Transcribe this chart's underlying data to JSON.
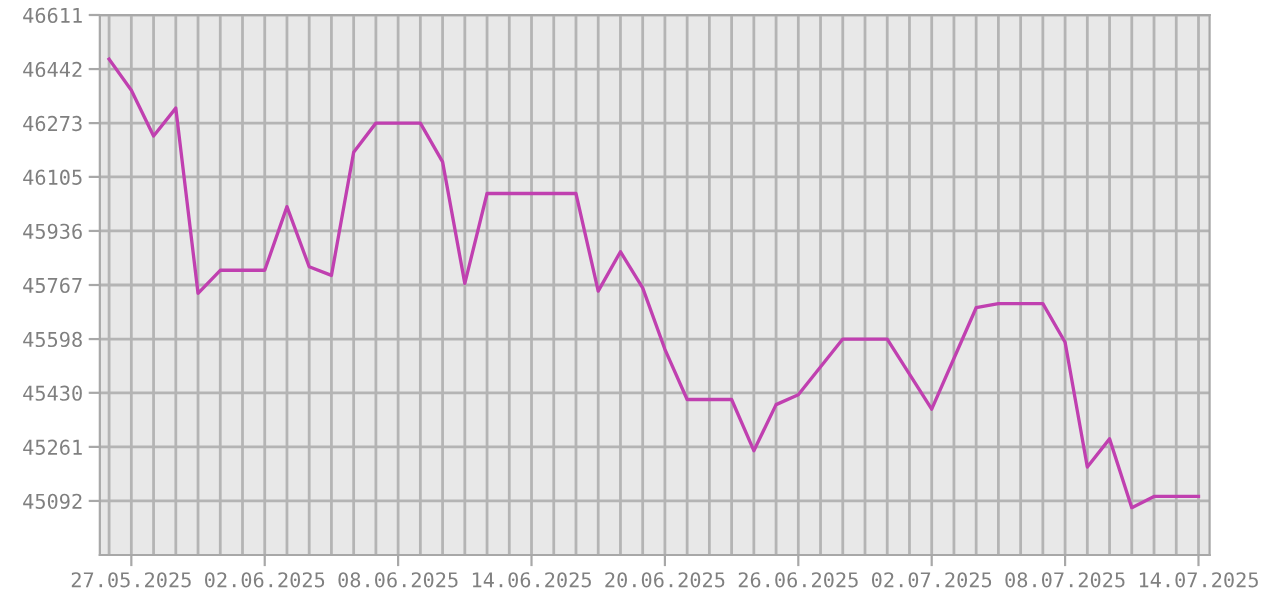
{
  "chart_data": {
    "type": "line",
    "x": [
      "2025-05-26",
      "2025-05-27",
      "2025-05-28",
      "2025-05-29",
      "2025-05-30",
      "2025-05-31",
      "2025-06-02",
      "2025-06-03",
      "2025-06-04",
      "2025-06-05",
      "2025-06-06",
      "2025-06-07",
      "2025-06-09",
      "2025-06-10",
      "2025-06-11",
      "2025-06-12",
      "2025-06-16",
      "2025-06-17",
      "2025-06-18",
      "2025-06-19",
      "2025-06-20",
      "2025-06-21",
      "2025-06-23",
      "2025-06-24",
      "2025-06-25",
      "2025-06-26",
      "2025-06-28",
      "2025-06-30",
      "2025-07-02",
      "2025-07-04",
      "2025-07-05",
      "2025-07-07",
      "2025-07-08",
      "2025-07-09",
      "2025-07-10",
      "2025-07-11",
      "2025-07-12",
      "2025-07-14"
    ],
    "series": [
      {
        "color": "#c040b0",
        "values": [
          46473,
          46376,
          46233,
          46320,
          45741,
          45813,
          45813,
          46012,
          45824,
          45797,
          46182,
          46273,
          46273,
          46152,
          45772,
          46053,
          46053,
          45748,
          45871,
          45758,
          45566,
          45409,
          45409,
          45249,
          45393,
          45424,
          45598,
          45598,
          45379,
          45696,
          45709,
          45709,
          45588,
          45198,
          45286,
          45071,
          45106,
          45106
        ]
      }
    ],
    "xlim": [
      "2025-05-25T14:00",
      "2025-07-14T12:00"
    ],
    "xticks": [
      {
        "value": "2025-05-26",
        "label": null
      },
      {
        "value": "2025-05-27",
        "label": "27.05.2025"
      },
      {
        "value": "2025-05-28",
        "label": null
      },
      {
        "value": "2025-05-29",
        "label": null
      },
      {
        "value": "2025-05-30",
        "label": null
      },
      {
        "value": "2025-05-31",
        "label": null
      },
      {
        "value": "2025-06-01",
        "label": null
      },
      {
        "value": "2025-06-02",
        "label": "02.06.2025"
      },
      {
        "value": "2025-06-03",
        "label": null
      },
      {
        "value": "2025-06-04",
        "label": null
      },
      {
        "value": "2025-06-05",
        "label": null
      },
      {
        "value": "2025-06-06",
        "label": null
      },
      {
        "value": "2025-06-07",
        "label": null
      },
      {
        "value": "2025-06-08",
        "label": "08.06.2025"
      },
      {
        "value": "2025-06-09",
        "label": null
      },
      {
        "value": "2025-06-10",
        "label": null
      },
      {
        "value": "2025-06-11",
        "label": null
      },
      {
        "value": "2025-06-12",
        "label": null
      },
      {
        "value": "2025-06-13",
        "label": null
      },
      {
        "value": "2025-06-14",
        "label": "14.06.2025"
      },
      {
        "value": "2025-06-15",
        "label": null
      },
      {
        "value": "2025-06-16",
        "label": null
      },
      {
        "value": "2025-06-17",
        "label": null
      },
      {
        "value": "2025-06-18",
        "label": null
      },
      {
        "value": "2025-06-19",
        "label": null
      },
      {
        "value": "2025-06-20",
        "label": "20.06.2025"
      },
      {
        "value": "2025-06-21",
        "label": null
      },
      {
        "value": "2025-06-22",
        "label": null
      },
      {
        "value": "2025-06-23",
        "label": null
      },
      {
        "value": "2025-06-24",
        "label": null
      },
      {
        "value": "2025-06-25",
        "label": null
      },
      {
        "value": "2025-06-26",
        "label": "26.06.2025"
      },
      {
        "value": "2025-06-27",
        "label": null
      },
      {
        "value": "2025-06-28",
        "label": null
      },
      {
        "value": "2025-06-29",
        "label": null
      },
      {
        "value": "2025-06-30",
        "label": null
      },
      {
        "value": "2025-07-01",
        "label": null
      },
      {
        "value": "2025-07-02",
        "label": "02.07.2025"
      },
      {
        "value": "2025-07-03",
        "label": null
      },
      {
        "value": "2025-07-04",
        "label": null
      },
      {
        "value": "2025-07-05",
        "label": null
      },
      {
        "value": "2025-07-06",
        "label": null
      },
      {
        "value": "2025-07-07",
        "label": null
      },
      {
        "value": "2025-07-08",
        "label": "08.07.2025"
      },
      {
        "value": "2025-07-09",
        "label": null
      },
      {
        "value": "2025-07-10",
        "label": null
      },
      {
        "value": "2025-07-11",
        "label": null
      },
      {
        "value": "2025-07-12",
        "label": null
      },
      {
        "value": "2025-07-13",
        "label": null
      },
      {
        "value": "2025-07-14",
        "label": "14.07.2025"
      }
    ],
    "ylim": [
      44923,
      46611
    ],
    "yticks": [
      45092,
      45261,
      45430,
      45598,
      45767,
      45936,
      46105,
      46273,
      46442,
      46611
    ],
    "grid": true,
    "marker": "none",
    "line_style": "solid"
  }
}
